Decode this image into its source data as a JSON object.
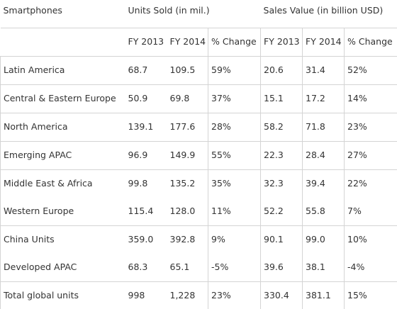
{
  "table": {
    "header": {
      "category": "Smartphones",
      "group1": "Units Sold (in mil.)",
      "group2": "Sales Value (in billion USD)",
      "sub": [
        "FY 2013",
        "FY 2014",
        "% Change",
        "FY 2013",
        "FY 2014",
        "% Change"
      ]
    },
    "rows": [
      {
        "region": "Latin America",
        "values": [
          "68.7",
          "109.5",
          "59%",
          "20.6",
          "31.4",
          "52%"
        ]
      },
      {
        "region": "Central & Eastern Europe",
        "values": [
          "50.9",
          "69.8",
          "37%",
          "15.1",
          "17.2",
          "14%"
        ]
      },
      {
        "region": "North America",
        "values": [
          "139.1",
          "177.6",
          "28%",
          "58.2",
          "71.8",
          "23%"
        ]
      },
      {
        "region": "Emerging APAC",
        "values": [
          "96.9",
          "149.9",
          "55%",
          "22.3",
          "28.4",
          "27%"
        ]
      },
      {
        "region": "Middle East & Africa",
        "values": [
          "99.8",
          "135.2",
          "35%",
          "32.3",
          "39.4",
          "22%"
        ]
      },
      {
        "region": "Western Europe",
        "values": [
          "115.4",
          "128.0",
          "11%",
          "52.2",
          "55.8",
          "7%"
        ]
      },
      {
        "region": "China Units",
        "values": [
          "359.0",
          "392.8",
          "9%",
          "90.1",
          "99.0",
          "10%"
        ]
      },
      {
        "region": "Developed APAC",
        "values": [
          "68.3",
          "65.1",
          "-5%",
          "39.6",
          "38.1",
          "-4%"
        ]
      },
      {
        "region": "Total global units",
        "values": [
          "998",
          "1,228",
          "23%",
          "330.4",
          "381.1",
          "15%"
        ]
      }
    ]
  }
}
